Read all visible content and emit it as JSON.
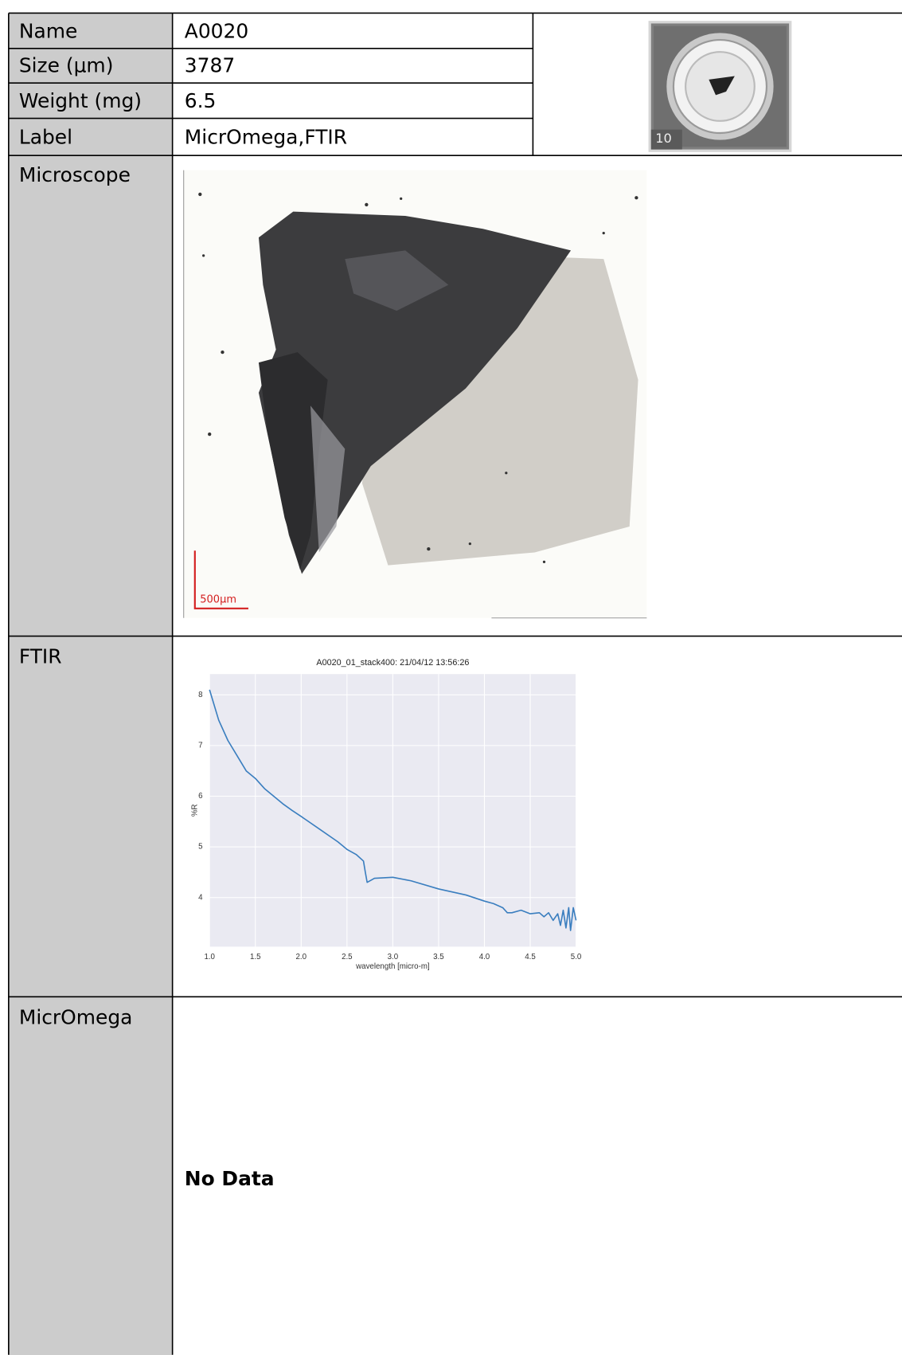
{
  "table": {
    "rows": [
      [
        "Name",
        "A0020"
      ],
      [
        "Size (μm)",
        "3787"
      ],
      [
        "Weight (mg)",
        "6.5"
      ],
      [
        "Label",
        "MicrOmega,FTIR"
      ]
    ]
  },
  "thumbnail": {
    "plate_label": "10"
  },
  "sections": [
    {
      "label": "Microscope",
      "scale_bar": "500μm"
    },
    {
      "label": "FTIR",
      "chart_data": {
        "type": "line",
        "title": "A0020_01_stack400:  21/04/12 13:56:26",
        "x_label": "wavelength [micro-m]",
        "y_label": "%R",
        "x": [
          1.0,
          1.1,
          1.2,
          1.3,
          1.4,
          1.5,
          1.6,
          1.7,
          1.8,
          1.9,
          2.0,
          2.2,
          2.4,
          2.5,
          2.6,
          2.68,
          2.7,
          2.72,
          2.8,
          3.0,
          3.2,
          3.5,
          3.8,
          4.0,
          4.1,
          4.2,
          4.25,
          4.3,
          4.4,
          4.5,
          4.6,
          4.65,
          4.7,
          4.75,
          4.8,
          4.83,
          4.86,
          4.89,
          4.92,
          4.94,
          4.97,
          5.0
        ],
        "values": [
          8.1,
          7.5,
          7.1,
          6.8,
          6.5,
          6.35,
          6.15,
          6.0,
          5.85,
          5.72,
          5.6,
          5.35,
          5.1,
          4.95,
          4.85,
          4.72,
          4.5,
          4.3,
          4.38,
          4.4,
          4.33,
          4.17,
          4.05,
          3.93,
          3.88,
          3.8,
          3.7,
          3.7,
          3.75,
          3.68,
          3.7,
          3.62,
          3.7,
          3.55,
          3.68,
          3.45,
          3.75,
          3.4,
          3.8,
          3.35,
          3.8,
          3.55
        ],
        "color": "#3a7ebf",
        "xlim": [
          1.0,
          5.0
        ],
        "ylim": [
          3.03,
          8.41
        ],
        "xticks": [
          {
            "value": 1.0,
            "label": "1.0"
          },
          {
            "value": 1.5,
            "label": "1.5"
          },
          {
            "value": 2.0,
            "label": "2.0"
          },
          {
            "value": 2.5,
            "label": "2.5"
          },
          {
            "value": 3.0,
            "label": "3.0"
          },
          {
            "value": 3.5,
            "label": "3.5"
          },
          {
            "value": 4.0,
            "label": "4.0"
          },
          {
            "value": 4.5,
            "label": "4.5"
          },
          {
            "value": 5.0,
            "label": "5.0"
          }
        ],
        "yticks": [
          4,
          5,
          6,
          7,
          8
        ],
        "grid": true
      }
    },
    {
      "label": "MicrOmega",
      "text": "No Data"
    }
  ]
}
